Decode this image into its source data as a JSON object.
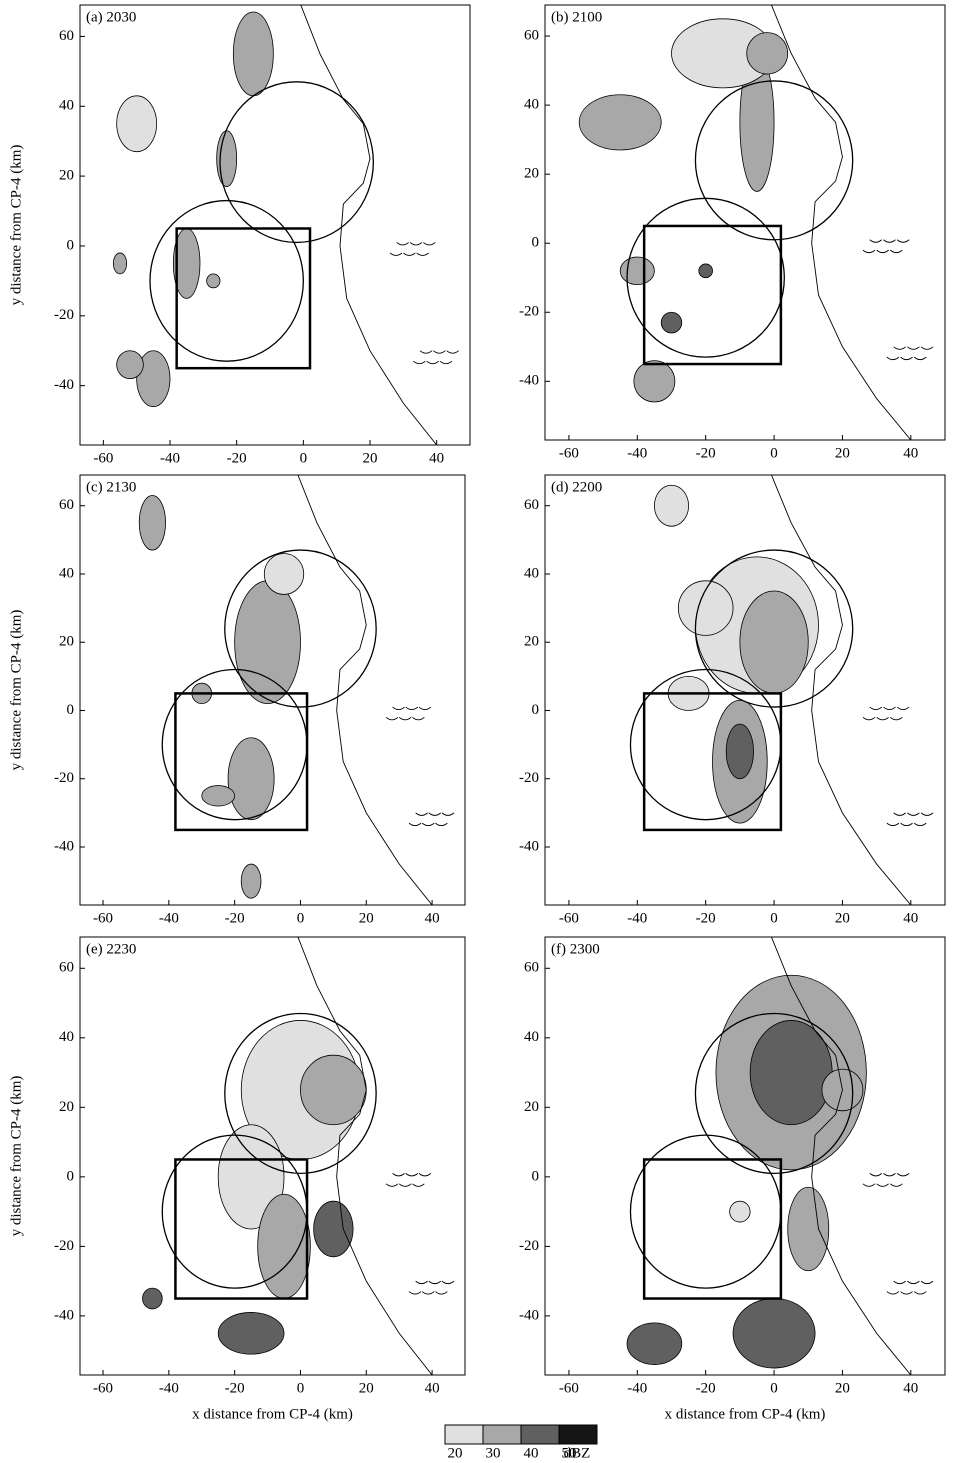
{
  "chart_data": [
    {
      "type": "contour",
      "title": "(a) 2030",
      "xlim": [
        -67,
        50
      ],
      "ylim": [
        -57,
        69
      ],
      "xticks": [
        -60,
        -40,
        -20,
        0,
        20,
        40
      ],
      "yticks": [
        -40,
        -20,
        0,
        20,
        40,
        60
      ],
      "ylabel": "y distance from CP-4 (km)"
    },
    {
      "type": "contour",
      "title": "(b) 2100",
      "xlim": [
        -67,
        50
      ],
      "ylim": [
        -57,
        69
      ],
      "xticks": [
        -60,
        -40,
        -20,
        0,
        20,
        40
      ],
      "yticks": [
        -40,
        -20,
        0,
        20,
        40,
        60
      ]
    },
    {
      "type": "contour",
      "title": "(c) 2130",
      "xlim": [
        -67,
        50
      ],
      "ylim": [
        -57,
        69
      ],
      "xticks": [
        -60,
        -40,
        -20,
        0,
        20,
        40
      ],
      "yticks": [
        -40,
        -20,
        0,
        20,
        40,
        60
      ],
      "ylabel": "y distance from CP-4 (km)"
    },
    {
      "type": "contour",
      "title": "(d) 2200",
      "xlim": [
        -67,
        50
      ],
      "ylim": [
        -57,
        69
      ],
      "xticks": [
        -60,
        -40,
        -20,
        0,
        20,
        40
      ],
      "yticks": [
        -40,
        -20,
        0,
        20,
        40,
        60
      ]
    },
    {
      "type": "contour",
      "title": "(e) 2230",
      "xlim": [
        -67,
        50
      ],
      "ylim": [
        -57,
        69
      ],
      "xticks": [
        -60,
        -40,
        -20,
        0,
        20,
        40
      ],
      "yticks": [
        -40,
        -20,
        0,
        20,
        40,
        60
      ],
      "ylabel": "y distance from CP-4 (km)",
      "xlabel": "x distance from CP-4 (km)"
    },
    {
      "type": "contour",
      "title": "(f) 2300",
      "xlim": [
        -67,
        50
      ],
      "ylim": [
        -57,
        69
      ],
      "xticks": [
        -60,
        -40,
        -20,
        0,
        20,
        40
      ],
      "yticks": [
        -40,
        -20,
        0,
        20,
        40,
        60
      ],
      "xlabel": "x distance from CP-4 (km)"
    }
  ],
  "colorbar": {
    "levels": [
      20,
      30,
      40,
      50
    ],
    "colors": [
      "#e0e0e0",
      "#a8a8a8",
      "#606060",
      "#151515"
    ],
    "unit": "dBZ"
  }
}
